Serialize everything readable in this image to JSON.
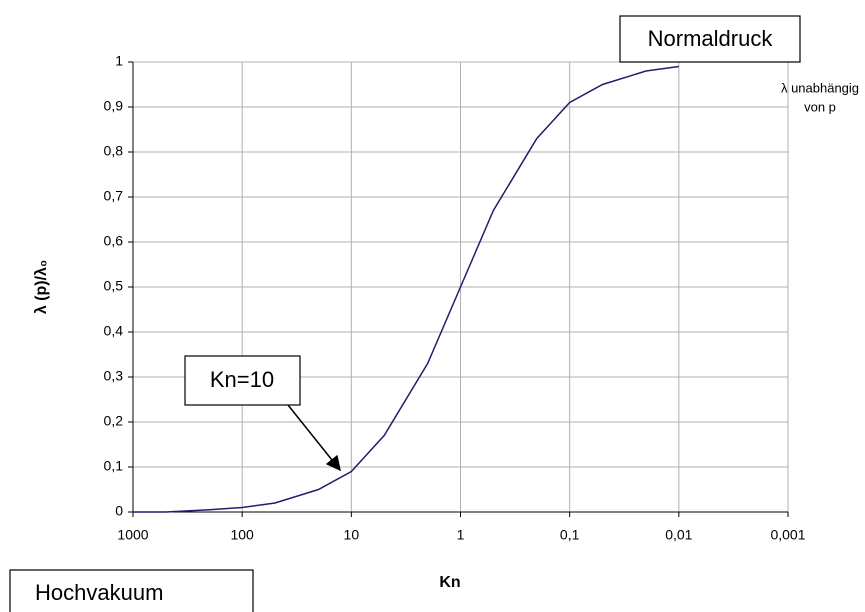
{
  "chart_data": {
    "type": "line",
    "x_label": "Kn",
    "y_label": "λ (p)/λ₀",
    "x": [
      1000,
      500,
      200,
      100,
      50,
      20,
      10,
      5,
      2,
      1,
      0.5,
      0.2,
      0.1,
      0.05,
      0.02,
      0.01
    ],
    "values": [
      0,
      0,
      0.005,
      0.01,
      0.02,
      0.05,
      0.09,
      0.17,
      0.33,
      0.5,
      0.67,
      0.83,
      0.91,
      0.95,
      0.98,
      0.99
    ],
    "color": "#1f1f6e",
    "xscale": "log",
    "xlim": [
      1000,
      0.001
    ],
    "xticks": [
      1000,
      100,
      10,
      1,
      {
        "value": 0.1,
        "label": "0,1"
      },
      {
        "value": 0.01,
        "label": "0,01"
      },
      {
        "value": 0.001,
        "label": "0,001"
      }
    ],
    "ylim": [
      0,
      1
    ],
    "yticks": [
      0,
      {
        "value": 0.1,
        "label": "0,1"
      },
      {
        "value": 0.2,
        "label": "0,2"
      },
      {
        "value": 0.3,
        "label": "0,3"
      },
      {
        "value": 0.4,
        "label": "0,4"
      },
      {
        "value": 0.5,
        "label": "0,5"
      },
      {
        "value": 0.6,
        "label": "0,6"
      },
      {
        "value": 0.7,
        "label": "0,7"
      },
      {
        "value": 0.8,
        "label": "0,8"
      },
      {
        "value": 0.9,
        "label": "0,9"
      },
      1
    ],
    "grid": true,
    "annotations": {
      "normaldruck": "Normaldruck",
      "independent": [
        "λ unabhängig",
        "von p"
      ],
      "kn10": "Kn=10",
      "hochvakuum": "Hochvakuum"
    }
  }
}
